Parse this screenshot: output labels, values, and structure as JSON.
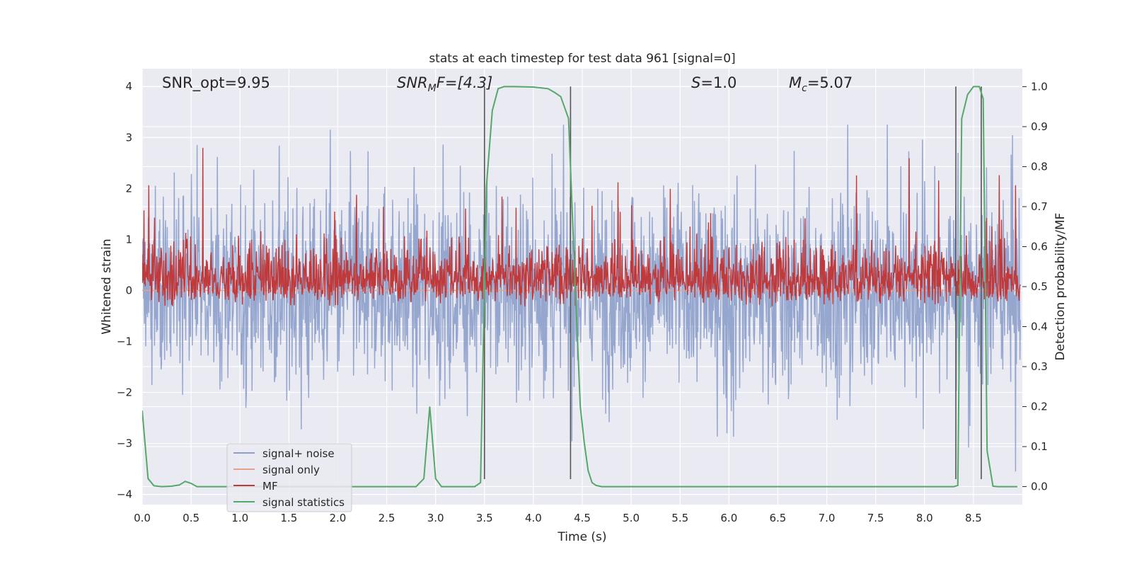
{
  "chart_data": {
    "type": "line",
    "title": "stats at each timestep for test data 961 [signal=0]",
    "xlabel": "Time (s)",
    "ylabel": "Whitened strain",
    "y2label": "Detection probability/MF",
    "xlim": [
      0.0,
      9.0
    ],
    "ylim": [
      -4.2,
      4.35
    ],
    "y2lim": [
      -0.045,
      1.045
    ],
    "xticks": [
      0.0,
      0.5,
      1.0,
      1.5,
      2.0,
      2.5,
      3.0,
      3.5,
      4.0,
      4.5,
      5.0,
      5.5,
      6.0,
      6.5,
      7.0,
      7.5,
      8.0,
      8.5
    ],
    "xtick_labels": [
      "0.0",
      "0.5",
      "1.0",
      "1.5",
      "2.0",
      "2.5",
      "3.0",
      "3.5",
      "4.0",
      "4.5",
      "5.0",
      "5.5",
      "6.0",
      "6.5",
      "7.0",
      "7.5",
      "8.0",
      "8.5"
    ],
    "yticks": [
      -4,
      -3,
      -2,
      -1,
      0,
      1,
      2,
      3,
      4
    ],
    "ytick_labels": [
      "−4",
      "−3",
      "−2",
      "−1",
      "0",
      "1",
      "2",
      "3",
      "4"
    ],
    "y2ticks": [
      0.0,
      0.1,
      0.2,
      0.3,
      0.4,
      0.5,
      0.6,
      0.7,
      0.8,
      0.9,
      1.0
    ],
    "y2tick_labels": [
      "0.0",
      "0.1",
      "0.2",
      "0.3",
      "0.4",
      "0.5",
      "0.6",
      "0.7",
      "0.8",
      "0.9",
      "1.0"
    ],
    "grid": true,
    "legend_position": "lower-left",
    "annotations": {
      "snr_opt": "SNR_opt=9.95",
      "snr_mf_prefix": "SNR",
      "snr_mf_sub": "M",
      "snr_mf_suffix": "F=[4.3]",
      "s_prefix": "S",
      "s_suffix": "=1.0",
      "mc_prefix": "M",
      "mc_sub": "c",
      "mc_suffix": "=5.07"
    },
    "series": [
      {
        "name": "signal+ noise",
        "color": "#8da0cb",
        "style": "noise band, approx ±1.5 typical with spikes to ±3.3"
      },
      {
        "name": "signal only",
        "color": "#e8a08a",
        "values_constant": 0.0
      },
      {
        "name": "MF",
        "color": "#c0393b",
        "range": [
          0.0,
          0.9
        ]
      },
      {
        "name": "signal statistics",
        "color": "#55a868",
        "axis": "right",
        "x": [
          0.0,
          0.06,
          0.12,
          0.2,
          0.3,
          0.38,
          0.44,
          0.5,
          0.56,
          0.7,
          1.0,
          1.5,
          2.0,
          2.5,
          2.8,
          2.88,
          2.94,
          3.0,
          3.06,
          3.15,
          3.3,
          3.4,
          3.46,
          3.52,
          3.58,
          3.64,
          3.7,
          3.8,
          4.0,
          4.15,
          4.22,
          4.28,
          4.36,
          4.42,
          4.48,
          4.52,
          4.56,
          4.6,
          4.64,
          4.7,
          4.8,
          5.0,
          6.0,
          7.0,
          8.0,
          8.2,
          8.28,
          8.3,
          8.34,
          8.38,
          8.44,
          8.5,
          8.56,
          8.6,
          8.64,
          8.7,
          8.75,
          8.95
        ],
        "values": [
          0.19,
          0.02,
          0.002,
          0.0,
          0.001,
          0.004,
          0.013,
          0.008,
          0.0,
          0.0,
          0.0,
          0.0,
          0.0,
          0.0,
          0.0,
          0.02,
          0.2,
          0.02,
          0.0,
          0.0,
          0.0,
          0.0,
          0.01,
          0.75,
          0.94,
          0.995,
          1.0,
          1.0,
          0.999,
          0.995,
          0.985,
          0.975,
          0.92,
          0.55,
          0.2,
          0.11,
          0.04,
          0.01,
          0.003,
          0.0,
          0.0,
          0.0,
          0.0,
          0.0,
          0.0,
          0.0,
          0.0,
          0.0,
          0.003,
          0.92,
          0.98,
          1.0,
          1.0,
          0.97,
          0.09,
          0.001,
          0.0,
          0.0
        ]
      }
    ],
    "vertical_markers": [
      {
        "x": 3.5,
        "y_from": -3.7,
        "y_to": 4.0
      },
      {
        "x": 4.38,
        "y_from": -3.7,
        "y_to": 4.0
      },
      {
        "x": 8.32,
        "y_from": -3.7,
        "y_to": 4.0
      },
      {
        "x": 8.58,
        "y_from": -3.7,
        "y_to": 4.0
      }
    ]
  }
}
